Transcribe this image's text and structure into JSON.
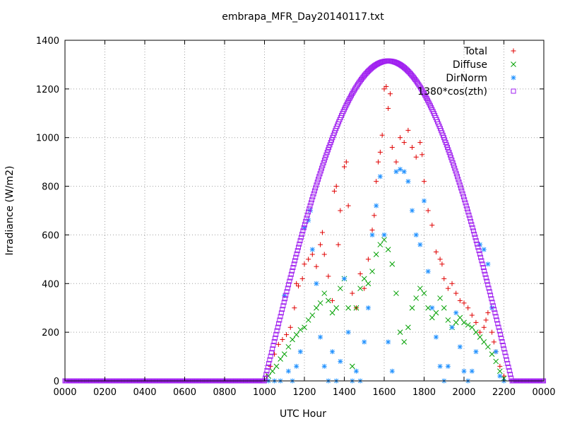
{
  "chart_data": {
    "type": "scatter",
    "title": "embrapa_MFR_Day20140117.txt",
    "xlabel": "UTC Hour",
    "ylabel": "Irradiance (W/m2)",
    "x_tick_labels": [
      "0000",
      "0200",
      "0400",
      "0600",
      "0800",
      "1000",
      "1200",
      "1400",
      "1600",
      "1800",
      "2000",
      "2200",
      "0000"
    ],
    "xlim_hours": [
      0,
      24
    ],
    "ylim": [
      0,
      1400
    ],
    "y_ticks": [
      0,
      200,
      400,
      600,
      800,
      1000,
      1200,
      1400
    ],
    "grid": true,
    "legend_position": "top-right",
    "series": [
      {
        "name": "Total",
        "marker": "plus",
        "color": "#e00000",
        "points": [
          [
            10.1,
            20
          ],
          [
            10.3,
            60
          ],
          [
            10.5,
            110
          ],
          [
            10.7,
            150
          ],
          [
            10.9,
            170
          ],
          [
            11.1,
            190
          ],
          [
            11.3,
            220
          ],
          [
            11.5,
            300
          ],
          [
            11.6,
            400
          ],
          [
            11.7,
            390
          ],
          [
            11.9,
            420
          ],
          [
            12.0,
            480
          ],
          [
            12.2,
            500
          ],
          [
            12.4,
            520
          ],
          [
            12.6,
            470
          ],
          [
            12.8,
            560
          ],
          [
            12.9,
            610
          ],
          [
            13.0,
            520
          ],
          [
            13.2,
            430
          ],
          [
            13.4,
            330
          ],
          [
            13.5,
            780
          ],
          [
            13.6,
            800
          ],
          [
            13.7,
            560
          ],
          [
            13.8,
            700
          ],
          [
            14.0,
            880
          ],
          [
            14.1,
            900
          ],
          [
            14.2,
            720
          ],
          [
            14.4,
            360
          ],
          [
            14.6,
            300
          ],
          [
            14.8,
            440
          ],
          [
            15.0,
            380
          ],
          [
            15.2,
            500
          ],
          [
            15.4,
            620
          ],
          [
            15.5,
            680
          ],
          [
            15.6,
            820
          ],
          [
            15.7,
            900
          ],
          [
            15.8,
            940
          ],
          [
            15.9,
            1010
          ],
          [
            16.0,
            1200
          ],
          [
            16.1,
            1210
          ],
          [
            16.2,
            1120
          ],
          [
            16.3,
            1180
          ],
          [
            16.4,
            960
          ],
          [
            16.6,
            900
          ],
          [
            16.8,
            1000
          ],
          [
            17.0,
            980
          ],
          [
            17.2,
            1030
          ],
          [
            17.4,
            960
          ],
          [
            17.6,
            920
          ],
          [
            17.8,
            980
          ],
          [
            17.9,
            930
          ],
          [
            18.0,
            820
          ],
          [
            18.2,
            700
          ],
          [
            18.4,
            640
          ],
          [
            18.6,
            530
          ],
          [
            18.8,
            500
          ],
          [
            18.9,
            480
          ],
          [
            19.0,
            420
          ],
          [
            19.2,
            380
          ],
          [
            19.4,
            400
          ],
          [
            19.6,
            360
          ],
          [
            19.8,
            330
          ],
          [
            20.0,
            320
          ],
          [
            20.2,
            300
          ],
          [
            20.4,
            270
          ],
          [
            20.6,
            240
          ],
          [
            20.8,
            200
          ],
          [
            21.0,
            220
          ],
          [
            21.1,
            250
          ],
          [
            21.2,
            280
          ],
          [
            21.4,
            200
          ],
          [
            21.5,
            160
          ],
          [
            21.6,
            120
          ],
          [
            21.8,
            60
          ],
          [
            22.0,
            20
          ]
        ]
      },
      {
        "name": "Diffuse",
        "marker": "cross",
        "color": "#00a000",
        "points": [
          [
            10.2,
            20
          ],
          [
            10.4,
            40
          ],
          [
            10.6,
            60
          ],
          [
            10.8,
            90
          ],
          [
            11.0,
            110
          ],
          [
            11.2,
            140
          ],
          [
            11.4,
            170
          ],
          [
            11.6,
            190
          ],
          [
            11.8,
            210
          ],
          [
            12.0,
            220
          ],
          [
            12.2,
            250
          ],
          [
            12.4,
            270
          ],
          [
            12.6,
            300
          ],
          [
            12.8,
            320
          ],
          [
            13.0,
            360
          ],
          [
            13.2,
            330
          ],
          [
            13.4,
            280
          ],
          [
            13.6,
            300
          ],
          [
            13.8,
            380
          ],
          [
            14.0,
            420
          ],
          [
            14.2,
            300
          ],
          [
            14.4,
            60
          ],
          [
            14.6,
            300
          ],
          [
            14.8,
            380
          ],
          [
            15.0,
            420
          ],
          [
            15.2,
            400
          ],
          [
            15.4,
            450
          ],
          [
            15.6,
            520
          ],
          [
            15.8,
            560
          ],
          [
            16.0,
            580
          ],
          [
            16.2,
            540
          ],
          [
            16.4,
            480
          ],
          [
            16.6,
            360
          ],
          [
            16.8,
            200
          ],
          [
            17.0,
            160
          ],
          [
            17.2,
            220
          ],
          [
            17.4,
            300
          ],
          [
            17.6,
            340
          ],
          [
            17.8,
            380
          ],
          [
            18.0,
            360
          ],
          [
            18.2,
            300
          ],
          [
            18.4,
            260
          ],
          [
            18.6,
            280
          ],
          [
            18.8,
            340
          ],
          [
            19.0,
            300
          ],
          [
            19.2,
            250
          ],
          [
            19.4,
            220
          ],
          [
            19.6,
            240
          ],
          [
            19.8,
            260
          ],
          [
            20.0,
            240
          ],
          [
            20.2,
            230
          ],
          [
            20.4,
            220
          ],
          [
            20.6,
            200
          ],
          [
            20.8,
            180
          ],
          [
            21.0,
            160
          ],
          [
            21.2,
            140
          ],
          [
            21.4,
            110
          ],
          [
            21.6,
            80
          ],
          [
            21.8,
            40
          ],
          [
            22.0,
            10
          ]
        ]
      },
      {
        "name": "DirNorm",
        "marker": "star",
        "color": "#1e90ff",
        "points": [
          [
            10.2,
            0
          ],
          [
            10.5,
            0
          ],
          [
            10.8,
            0
          ],
          [
            11.0,
            350
          ],
          [
            11.2,
            40
          ],
          [
            11.4,
            0
          ],
          [
            11.6,
            60
          ],
          [
            11.8,
            120
          ],
          [
            12.0,
            630
          ],
          [
            12.2,
            660
          ],
          [
            12.3,
            700
          ],
          [
            12.4,
            540
          ],
          [
            12.6,
            400
          ],
          [
            12.8,
            180
          ],
          [
            13.0,
            60
          ],
          [
            13.2,
            0
          ],
          [
            13.4,
            120
          ],
          [
            13.6,
            0
          ],
          [
            13.8,
            80
          ],
          [
            14.0,
            420
          ],
          [
            14.2,
            200
          ],
          [
            14.4,
            0
          ],
          [
            14.6,
            40
          ],
          [
            14.8,
            0
          ],
          [
            15.0,
            160
          ],
          [
            15.2,
            300
          ],
          [
            15.4,
            600
          ],
          [
            15.6,
            720
          ],
          [
            15.8,
            840
          ],
          [
            16.0,
            600
          ],
          [
            16.2,
            160
          ],
          [
            16.4,
            40
          ],
          [
            16.6,
            860
          ],
          [
            16.8,
            870
          ],
          [
            17.0,
            860
          ],
          [
            17.2,
            820
          ],
          [
            17.4,
            700
          ],
          [
            17.6,
            600
          ],
          [
            17.8,
            560
          ],
          [
            18.0,
            740
          ],
          [
            18.2,
            450
          ],
          [
            18.4,
            300
          ],
          [
            18.6,
            180
          ],
          [
            18.8,
            60
          ],
          [
            19.0,
            0
          ],
          [
            19.2,
            60
          ],
          [
            19.4,
            220
          ],
          [
            19.6,
            280
          ],
          [
            19.8,
            140
          ],
          [
            20.0,
            40
          ],
          [
            20.2,
            0
          ],
          [
            20.4,
            40
          ],
          [
            20.6,
            120
          ],
          [
            20.8,
            560
          ],
          [
            21.0,
            540
          ],
          [
            21.2,
            480
          ],
          [
            21.4,
            300
          ],
          [
            21.6,
            120
          ],
          [
            21.8,
            20
          ],
          [
            22.0,
            0
          ]
        ]
      },
      {
        "name": "1380*cos(zth)",
        "marker": "square",
        "color": "#a020f0",
        "peak": 1315,
        "peak_hour": 16.2,
        "zero_hours": [
          10.0,
          22.4
        ]
      }
    ]
  }
}
